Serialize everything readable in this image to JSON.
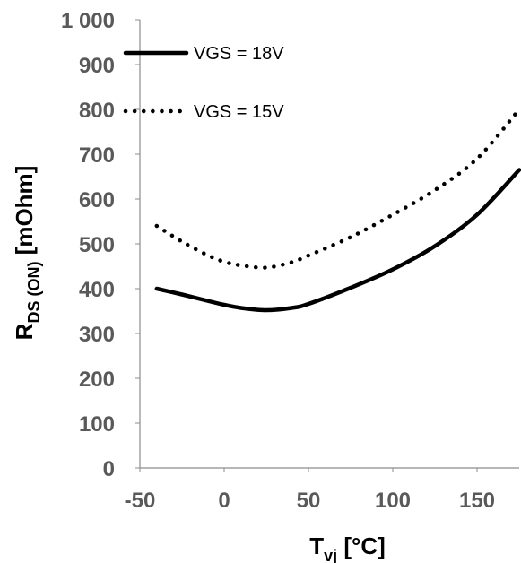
{
  "chart_data": {
    "type": "line",
    "xlabel": {
      "main": "T",
      "sub": "vj",
      "suffix": " [°C]"
    },
    "ylabel": {
      "main": "R",
      "sub": "DS (ON)",
      "suffix": " [mOhm]"
    },
    "xlim": [
      -50,
      175
    ],
    "ylim": [
      0,
      1000
    ],
    "x_ticks": [
      -50,
      0,
      50,
      100,
      150
    ],
    "x_tick_labels": [
      "-50",
      "0",
      "50",
      "100",
      "150"
    ],
    "y_ticks": [
      0,
      100,
      200,
      300,
      400,
      500,
      600,
      700,
      800,
      900,
      1000
    ],
    "y_tick_labels": [
      "0",
      "100",
      "200",
      "300",
      "400",
      "500",
      "600",
      "700",
      "800",
      "900",
      "1 000"
    ],
    "grid": false,
    "legend_position": "top-left",
    "series": [
      {
        "name": "VGS = 18V",
        "style": "solid",
        "color": "#000000",
        "x": [
          -40,
          -25,
          -10,
          0,
          10,
          25,
          40,
          50,
          75,
          100,
          125,
          150,
          175
        ],
        "y": [
          400,
          387,
          373,
          364,
          357,
          352,
          357,
          366,
          402,
          443,
          495,
          565,
          665
        ]
      },
      {
        "name": "VGS = 15V",
        "style": "dotted",
        "color": "#000000",
        "x": [
          -40,
          -25,
          -10,
          0,
          10,
          25,
          40,
          50,
          75,
          100,
          125,
          150,
          175
        ],
        "y": [
          540,
          505,
          475,
          460,
          452,
          447,
          459,
          474,
          515,
          565,
          620,
          690,
          800
        ]
      }
    ]
  }
}
